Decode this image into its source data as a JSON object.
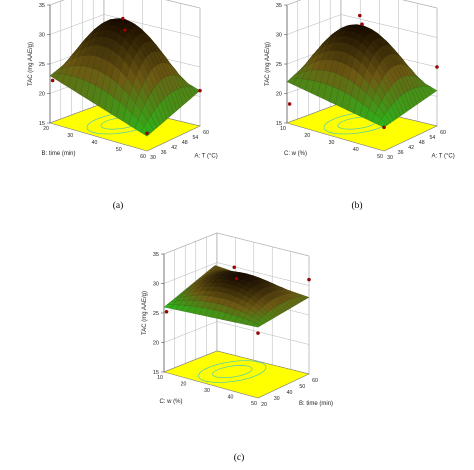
{
  "colors": {
    "floor": "#ffff00",
    "contour": "#5fd0a0",
    "surface_low": "#2cb61a",
    "surface_mid": "#6e5a12",
    "surface_high": "#1a0d00",
    "point": "#b00000"
  },
  "chart_data": [
    {
      "type": "surface3d",
      "panel_label": "(a)",
      "zlabel": "TAC (mg AAE/g)",
      "z_ticks": [
        "15",
        "20",
        "25",
        "30",
        "35"
      ],
      "zlim": [
        15,
        35
      ],
      "left_axis": {
        "label": "B: time (min)",
        "ticks": [
          "20",
          "30",
          "40",
          "50",
          "60"
        ]
      },
      "right_axis": {
        "label": "A: T (°C)",
        "ticks": [
          "30",
          "36",
          "42",
          "48",
          "54",
          "60"
        ]
      },
      "corner_values": {
        "near": 17.5,
        "left_back": 23,
        "right": 21,
        "back": 26
      },
      "peak": 32,
      "design_points": [
        32.5,
        31,
        21,
        18,
        22
      ]
    },
    {
      "type": "surface3d",
      "panel_label": "(b)",
      "zlabel": "TAC (mg AAE/g)",
      "z_ticks": [
        "15",
        "20",
        "25",
        "30",
        "35"
      ],
      "zlim": [
        15,
        35
      ],
      "left_axis": {
        "label": "C: w (%)",
        "ticks": [
          "10",
          "20",
          "30",
          "40",
          "50"
        ]
      },
      "right_axis": {
        "label": "A: T (°C)",
        "ticks": [
          "30",
          "36",
          "42",
          "48",
          "54",
          "60"
        ]
      },
      "corner_values": {
        "near": 19,
        "left_back": 22,
        "right": 21,
        "back": 26
      },
      "peak": 31,
      "design_points": [
        33,
        32,
        25,
        19,
        18
      ]
    },
    {
      "type": "surface3d",
      "panel_label": "(c)",
      "zlabel": "TAC (mg AAE/g)",
      "z_ticks": [
        "15",
        "20",
        "25",
        "30",
        "35"
      ],
      "zlim": [
        15,
        35
      ],
      "left_axis": {
        "label": "C: w (%)",
        "ticks": [
          "10",
          "20",
          "30",
          "40",
          "50"
        ]
      },
      "right_axis": {
        "label": "B: time (min)",
        "ticks": [
          "20",
          "30",
          "40",
          "50",
          "60"
        ]
      },
      "corner_values": {
        "near": 27,
        "left_back": 26,
        "right": 28,
        "back": 29
      },
      "peak": 31,
      "design_points": [
        32.5,
        31,
        31,
        26,
        25
      ]
    }
  ]
}
